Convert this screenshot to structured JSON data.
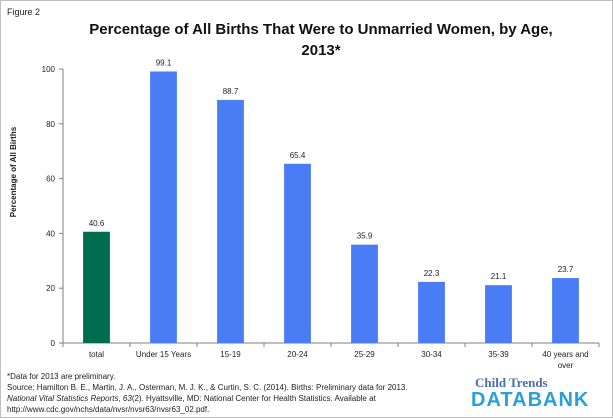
{
  "figure_label": "Figure 2",
  "chart_data": {
    "type": "bar",
    "title": "Percentage of All Births That Were to Unmarried Women, by Age, 2013*",
    "title_lines": [
      "Percentage of All Births That Were to Unmarried Women, by Age,",
      "2013*"
    ],
    "xlabel": "",
    "ylabel": "Percentage of All Births",
    "ylim": [
      0,
      100
    ],
    "yticks": [
      0,
      20,
      40,
      60,
      80,
      100
    ],
    "categories": [
      "total",
      "Under 15 Years",
      "15-19",
      "20-24",
      "25-29",
      "30-34",
      "35-39",
      "40 years and over"
    ],
    "category_lines": [
      [
        "total"
      ],
      [
        "Under 15 Years"
      ],
      [
        "15-19"
      ],
      [
        "20-24"
      ],
      [
        "25-29"
      ],
      [
        "30-34"
      ],
      [
        "35-39"
      ],
      [
        "40 years and",
        "over"
      ]
    ],
    "values": [
      40.6,
      99.1,
      88.7,
      65.4,
      35.9,
      22.3,
      21.1,
      23.7
    ],
    "data_labels": [
      "40.6",
      "99.1",
      "88.7",
      "65.4",
      "35.9",
      "22.3",
      "21.1",
      "23.7"
    ],
    "colors": [
      "#006d4f",
      "#4a7cf6",
      "#4a7cf6",
      "#4a7cf6",
      "#4a7cf6",
      "#4a7cf6",
      "#4a7cf6",
      "#4a7cf6"
    ],
    "grid": false,
    "legend": "none"
  },
  "footer": {
    "note": "*Data for 2013 are preliminary.",
    "source_line1": "Source: Hamilton B. E., Martin, J. A., Osterman, M. J. K., & Curtin, S. C. (2014). Births: Preliminary data for 2013.",
    "source_journal": "National Vital Statistics Reports, 63",
    "source_line2_rest": "(2). Hyattsville, MD: National Center for Health Statistics.  Available at",
    "source_line3": "http://www.cdc.gov/nchs/data/nvsr/nvsr63/nvsr63_02.pdf."
  },
  "logo": {
    "line1": "Child Trends",
    "line2": "DATABANK"
  }
}
